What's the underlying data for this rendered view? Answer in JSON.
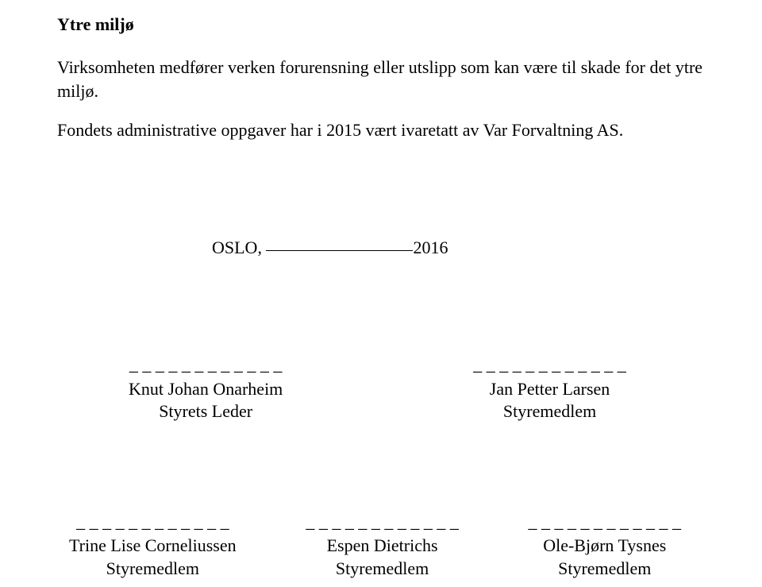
{
  "heading": "Ytre miljø",
  "para1": "Virksomheten medfører verken forurensning eller utslipp som kan være til skade for det ytre miljø.",
  "para2": "Fondets administrative oppgaver har i 2015 vært ivaretatt av Var Forvaltning AS.",
  "date": {
    "city": "OSLO,",
    "year": "2016"
  },
  "dash_pattern": "_ _ _ _ _ _ _ _ _  _ _ _",
  "signatures": {
    "row1": [
      {
        "name": "Knut Johan Onarheim",
        "role": "Styrets Leder"
      },
      {
        "name": "Jan Petter Larsen",
        "role": "Styremedlem"
      }
    ],
    "row2": [
      {
        "name": "Trine Lise Corneliussen",
        "role": "Styremedlem"
      },
      {
        "name": "Espen Dietrichs",
        "role": "Styremedlem"
      },
      {
        "name": "Ole-Bjørn Tysnes",
        "role": "Styremedlem"
      }
    ]
  }
}
